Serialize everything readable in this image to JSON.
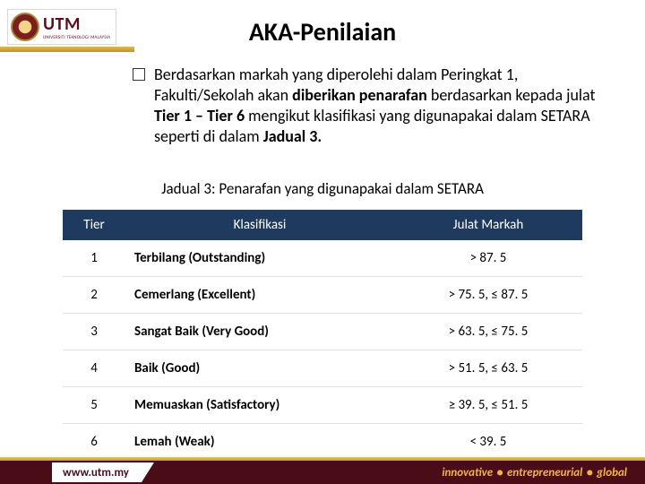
{
  "logo": {
    "text": "UTM",
    "sub": "UNIVERSITI TEKNOLOGI MALAYSIA"
  },
  "title": "AKA-Penilaian",
  "bullet": {
    "pre": "Berdasarkan markah yang diperolehi dalam Peringkat 1, Fakulti/Sekolah akan ",
    "bold1": "diberikan penarafan ",
    "mid1": "berdasarkan kepada julat ",
    "bold2": "Tier 1 – Tier 6 ",
    "mid2": "mengikut klasifikasi yang digunapakai dalam SETARA  seperti di dalam ",
    "bold3": "Jadual 3."
  },
  "caption": "Jadual 3: Penarafan yang digunapakai dalam SETARA",
  "table": {
    "headers": {
      "tier": "Tier",
      "klas": "Klasifikasi",
      "jm": "Julat Markah"
    },
    "header_bg": "#1f3a5f",
    "header_fg": "#ffffff",
    "rows": [
      {
        "tier": "1",
        "klas": "Terbilang (Outstanding)",
        "jm": "> 87. 5"
      },
      {
        "tier": "2",
        "klas": "Cemerlang (Excellent)",
        "jm": "> 75. 5,  ≤ 87. 5"
      },
      {
        "tier": "3",
        "klas": "Sangat Baik (Very Good)",
        "jm": "> 63. 5,  ≤ 75. 5"
      },
      {
        "tier": "4",
        "klas": "Baik (Good)",
        "jm": "> 51. 5,  ≤ 63. 5"
      },
      {
        "tier": "5",
        "klas": "Memuaskan (Satisfactory)",
        "jm": "≥ 39. 5,  ≤ 51. 5"
      },
      {
        "tier": "6",
        "klas": "Lemah (Weak)",
        "jm": "< 39. 5"
      }
    ]
  },
  "footer": {
    "url": "www.utm.my",
    "words": [
      "innovative",
      "entrepreneurial",
      "global"
    ]
  },
  "colors": {
    "brand_maroon": "#4a0d18",
    "brand_gold": "#f0b54a",
    "table_header_bg": "#1f3a5f"
  }
}
